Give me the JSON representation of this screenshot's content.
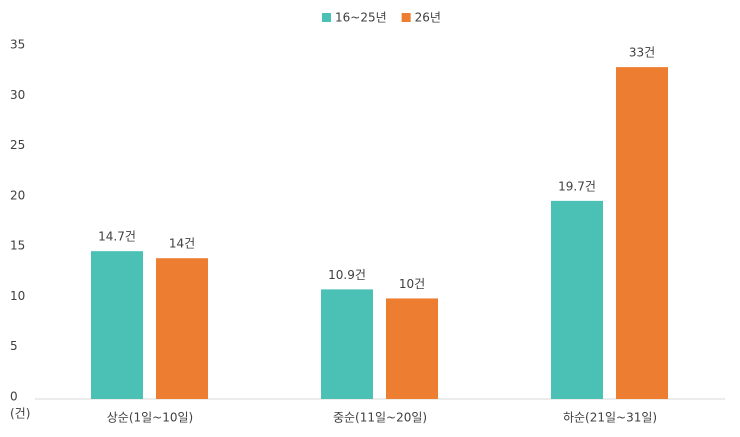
{
  "chart_data": {
    "type": "bar",
    "categories": [
      "상순(1일~10일)",
      "중순(11일~20일)",
      "하순(21일~31일)"
    ],
    "series": [
      {
        "name": "16~25년",
        "color": "#4bc0b5",
        "values": [
          14.7,
          10.9,
          19.7
        ],
        "value_labels": [
          "14.7건",
          "10.9건",
          "19.7건"
        ]
      },
      {
        "name": "26년",
        "color": "#ed7d31",
        "values": [
          14,
          10,
          33
        ],
        "value_labels": [
          "14건",
          "10건",
          "33건"
        ]
      }
    ],
    "ylim": [
      0,
      35
    ],
    "yticks": [
      0,
      5,
      10,
      15,
      20,
      25,
      30,
      35
    ],
    "y_label": "(건)",
    "grid": false,
    "legend": "top"
  }
}
